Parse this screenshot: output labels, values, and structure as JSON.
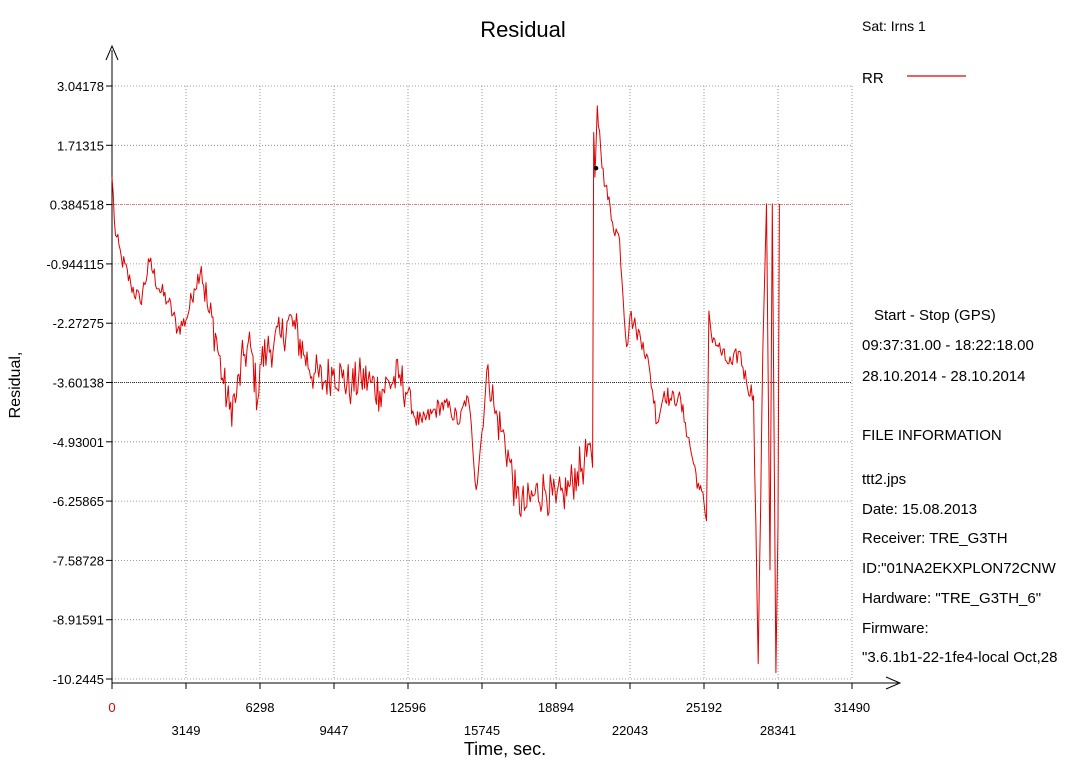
{
  "chart_data": {
    "type": "line",
    "title": "Residual",
    "xlabel": "Time, sec.",
    "ylabel": "Residual,",
    "xlim": [
      0,
      31490
    ],
    "ylim": [
      -10.2445,
      3.04178
    ],
    "x_ticks_upper": [
      "0",
      "6298",
      "12596",
      "18894",
      "25192",
      "31490"
    ],
    "x_ticks_lower": [
      "3149",
      "9447",
      "15745",
      "22043",
      "28341"
    ],
    "x_tick_values": [
      0,
      3149,
      6298,
      9447,
      12596,
      15745,
      18894,
      22043,
      25192,
      28341,
      31490
    ],
    "y_ticks": [
      "3.04178",
      "1.71315",
      "0.384518",
      "-0.944115",
      "-2.27275",
      "-3.60138",
      "-4.93001",
      "-6.25865",
      "-7.58728",
      "-8.91591",
      "-10.2445"
    ],
    "y_tick_values": [
      3.04178,
      1.71315,
      0.384518,
      -0.944115,
      -2.27275,
      -3.60138,
      -4.93001,
      -6.25865,
      -7.58728,
      -8.91591,
      -10.2445
    ],
    "reference_lines": [
      {
        "y": 0.384518,
        "color": "#e05050"
      },
      {
        "y": -3.60138,
        "color": "#000000"
      }
    ],
    "marker_point": {
      "x": 20600,
      "y": 1.2
    },
    "grid": true,
    "series": [
      {
        "name": "RR",
        "color": "#e00000",
        "x": [
          0,
          150,
          400,
          800,
          1200,
          1600,
          2000,
          2400,
          2800,
          3149,
          3500,
          3800,
          4100,
          4400,
          4700,
          5000,
          5300,
          5600,
          5900,
          6200,
          6298,
          6600,
          6900,
          7200,
          7500,
          7800,
          8200,
          8600,
          9000,
          9447,
          9800,
          10200,
          10600,
          11000,
          11400,
          11800,
          12200,
          12596,
          12900,
          13200,
          13600,
          14000,
          14400,
          14800,
          15100,
          15300,
          15500,
          15745,
          16000,
          16300,
          16600,
          16900,
          17200,
          17600,
          18000,
          18400,
          18894,
          19200,
          19500,
          19800,
          20100,
          20300,
          20450,
          20500,
          20550,
          20650,
          20800,
          20900,
          21000,
          21300,
          21600,
          21900,
          22043,
          22300,
          22600,
          22900,
          23200,
          23500,
          23800,
          24100,
          24400,
          24700,
          25000,
          25192,
          25300,
          25400,
          25500,
          25600,
          25800,
          26100,
          26400,
          26700,
          27000,
          27300,
          27500,
          27700,
          27850,
          28000,
          28100,
          28250,
          28341,
          28400
        ],
        "y": [
          1.0,
          -0.3,
          -0.8,
          -1.4,
          -1.8,
          -0.9,
          -1.5,
          -1.8,
          -2.4,
          -2.2,
          -1.5,
          -1.0,
          -2.0,
          -2.5,
          -3.5,
          -4.2,
          -3.9,
          -3.0,
          -2.8,
          -4.0,
          -3.2,
          -2.9,
          -2.7,
          -2.6,
          -2.2,
          -2.4,
          -3.0,
          -3.4,
          -3.6,
          -3.3,
          -3.5,
          -3.7,
          -3.5,
          -3.6,
          -3.8,
          -3.6,
          -3.5,
          -3.8,
          -4.4,
          -4.5,
          -4.3,
          -4.1,
          -4.2,
          -4.5,
          -3.9,
          -4.6,
          -6.0,
          -4.7,
          -3.2,
          -4.3,
          -4.7,
          -5.3,
          -6.2,
          -6.4,
          -6.1,
          -6.0,
          -6.3,
          -6.1,
          -5.9,
          -5.6,
          -5.4,
          -5.0,
          -5.5,
          2.0,
          1.0,
          2.6,
          1.6,
          1.2,
          0.8,
          0.0,
          -0.4,
          -2.8,
          -2.1,
          -2.4,
          -2.7,
          -3.4,
          -4.5,
          -3.8,
          -4.0,
          -3.9,
          -4.5,
          -5.3,
          -6.0,
          -6.3,
          -6.7,
          -2.0,
          -2.5,
          -2.6,
          -2.8,
          -3.1,
          -3.2,
          -2.9,
          -3.6,
          -3.9,
          -9.9,
          -2.8,
          0.4,
          -7.8,
          0.4,
          -10.1,
          -6.8,
          0.4
        ]
      }
    ]
  },
  "side_panel": {
    "sat_label": "Sat: Irns  1",
    "legend_label": "RR",
    "start_stop_title": "Start  -  Stop  (GPS)",
    "time_range": "09:37:31.00 - 18:22:18.00",
    "date_range": "28.10.2014 - 28.10.2014",
    "file_info_title": "FILE INFORMATION",
    "file_name": "ttt2.jps",
    "date": "Date: 15.08.2013",
    "receiver": "Receiver: TRE_G3TH",
    "id": "ID:\"01NA2EKXPLON72CNW",
    "hardware": "Hardware: \"TRE_G3TH_6\"",
    "firmware_label": "Firmware:",
    "firmware_value": "\"3.6.1b1-22-1fe4-local Oct,28"
  }
}
